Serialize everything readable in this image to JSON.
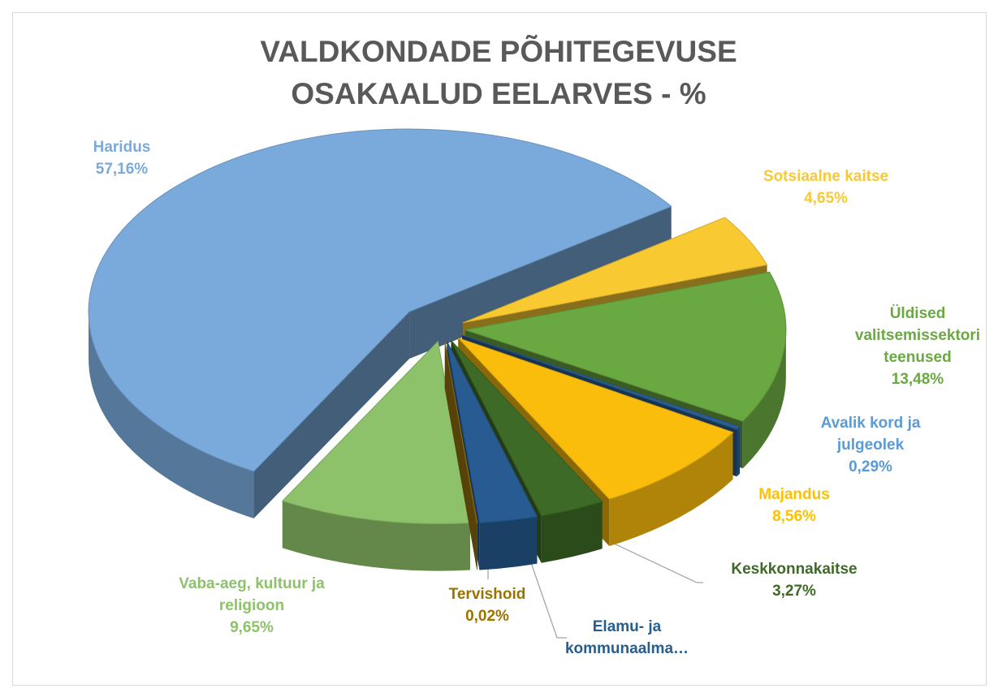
{
  "chart_data": {
    "type": "pie3d",
    "title": "VALDKONDADE PÕHITEGEVUSE OSAKAALUD EELARVES - %",
    "categories": [
      "Haridus",
      "Sotsiaalne kaitse",
      "Üldised valitsemissektori teenused",
      "Avalik kord ja julgeolek",
      "Majandus",
      "Keskkonnakaitse",
      "Elamu- ja kommunaalma…",
      "Tervishoid",
      "Vaba-aeg, kultuur ja religioon"
    ],
    "values": [
      57.16,
      4.65,
      13.48,
      0.29,
      8.56,
      3.27,
      2.92,
      0.02,
      9.65
    ],
    "value_labels": [
      "57,16%",
      "4,65%",
      "13,48%",
      "0,29%",
      "8,56%",
      "3,27%",
      null,
      "0,02%",
      "9,65%"
    ],
    "colors": [
      "#7aaadc",
      "#f9c932",
      "#6aa842",
      "#2a5d91",
      "#fbbd0c",
      "#3d6b27",
      "#275b91",
      "#9e7a10",
      "#8dc26a"
    ]
  }
}
